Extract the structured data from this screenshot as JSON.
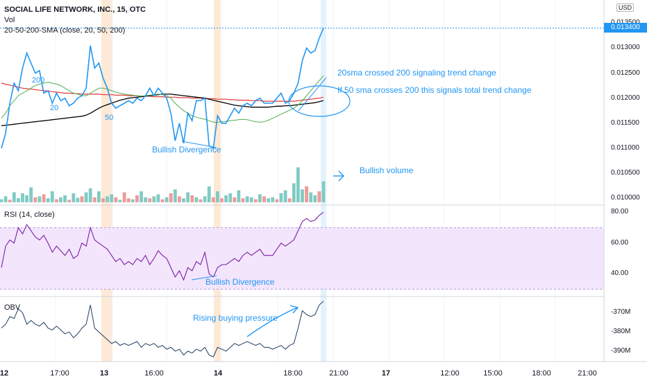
{
  "header": {
    "symbol": "SOCIAL LIFE NETWORK, INC., 15, OTC",
    "vol_label": "Vol",
    "sma_label": "20-50-200-SMA (close, 20, 50, 200)",
    "currency": "USD",
    "last_price": "0.013400"
  },
  "colors": {
    "price": "#2196f3",
    "sma20": "#4caf50",
    "sma50": "#000000",
    "sma200": "#e53935",
    "rsi": "#7b1fa2",
    "rsi_band": "#f3e5fc",
    "obv": "#1e3a5f",
    "vol_up": "#80cbc4",
    "vol_down": "#ef9a9a",
    "session_highlight": "#fde9d6"
  },
  "annotations": {
    "sma200_tag": "200",
    "sma20_tag": "20",
    "sma50_tag": "50",
    "bullish_divergence_price": "Bullish Divergence",
    "sma_cross_note": "20sma crossed 200 signaling trend change",
    "sma50_note": "If 50 sma crosses 200 this signals total trend change",
    "bullish_volume": "Bullish volume",
    "bullish_divergence_rsi": "Bullish Divergence",
    "rising_pressure": "Rising buying pressure"
  },
  "rsi_label": "RSI (14, close)",
  "obv_label": "OBV",
  "price_axis": [
    "0.013500",
    "0.013000",
    "0.012500",
    "0.012000",
    "0.011500",
    "0.011000",
    "0.010500",
    "0.010000"
  ],
  "rsi_axis": [
    "80.00",
    "60.00",
    "40.00"
  ],
  "obv_axis": [
    "-370M",
    "-380M",
    "-390M"
  ],
  "time_axis": [
    {
      "label": "12",
      "bold": true
    },
    {
      "label": "17:00",
      "bold": false
    },
    {
      "label": "13",
      "bold": true
    },
    {
      "label": "16:00",
      "bold": false
    },
    {
      "label": "14",
      "bold": true
    },
    {
      "label": "18:00",
      "bold": false
    },
    {
      "label": "21:00",
      "bold": false
    },
    {
      "label": "17",
      "bold": true
    },
    {
      "label": "12:00",
      "bold": false
    },
    {
      "label": "15:00",
      "bold": false
    },
    {
      "label": "18:00",
      "bold": false
    },
    {
      "label": "21:00",
      "bold": false
    }
  ],
  "chart_data": {
    "type": "line",
    "price_ylim": [
      0.00995,
      0.0136
    ],
    "price": [
      0.011,
      0.0113,
      0.0119,
      0.0123,
      0.01215,
      0.0126,
      0.0129,
      0.0127,
      0.0125,
      0.01255,
      0.0121,
      0.01215,
      0.0119,
      0.0121,
      0.01195,
      0.012,
      0.01185,
      0.0119,
      0.012,
      0.01205,
      0.0122,
      0.01305,
      0.0126,
      0.0127,
      0.0124,
      0.0122,
      0.0119,
      0.0118,
      0.01185,
      0.0119,
      0.01195,
      0.0119,
      0.012,
      0.01195,
      0.01205,
      0.0122,
      0.01205,
      0.0122,
      0.0121,
      0.012,
      0.0117,
      0.01115,
      0.0115,
      0.0111,
      0.0117,
      0.01155,
      0.01195,
      0.01195,
      0.012,
      0.01105,
      0.011,
      0.01165,
      0.0115,
      0.0115,
      0.01165,
      0.0118,
      0.0117,
      0.01185,
      0.0119,
      0.01185,
      0.01195,
      0.012,
      0.0119,
      0.0119,
      0.0119,
      0.012,
      0.0121,
      0.0119,
      0.01195,
      0.0121,
      0.0123,
      0.01275,
      0.013,
      0.0129,
      0.01295,
      0.0132,
      0.0134
    ],
    "sma20": [
      0.0116,
      0.0117,
      0.01185,
      0.01195,
      0.01205,
      0.0121,
      0.01215,
      0.0122,
      0.01225,
      0.01228,
      0.0123,
      0.01232,
      0.0123,
      0.01228,
      0.01225,
      0.0122,
      0.01215,
      0.0121,
      0.01208,
      0.01205,
      0.01205,
      0.0121,
      0.01215,
      0.0122,
      0.0122,
      0.01218,
      0.01215,
      0.01212,
      0.0121,
      0.01208,
      0.01207,
      0.01206,
      0.01205,
      0.01204,
      0.01205,
      0.01206,
      0.01207,
      0.01208,
      0.01207,
      0.01205,
      0.012,
      0.0119,
      0.01182,
      0.01175,
      0.0117,
      0.01165,
      0.01162,
      0.0116,
      0.01158,
      0.01155,
      0.01152,
      0.01152,
      0.01153,
      0.01154,
      0.01155,
      0.01156,
      0.01157,
      0.01158,
      0.01157,
      0.01155,
      0.01153,
      0.01152,
      0.01153,
      0.01156,
      0.0116,
      0.01164,
      0.01168,
      0.01172,
      0.01176,
      0.0118,
      0.01186,
      0.01195,
      0.01205,
      0.01215,
      0.01225,
      0.01235,
      0.01245
    ],
    "sma50": [
      0.01145,
      0.01146,
      0.01147,
      0.01148,
      0.01149,
      0.0115,
      0.01151,
      0.01152,
      0.01153,
      0.01154,
      0.01155,
      0.01156,
      0.01157,
      0.01158,
      0.01159,
      0.0116,
      0.01161,
      0.01162,
      0.01163,
      0.01164,
      0.01166,
      0.0117,
      0.01175,
      0.0118,
      0.01184,
      0.01187,
      0.0119,
      0.01193,
      0.01196,
      0.01198,
      0.012,
      0.01201,
      0.01202,
      0.01203,
      0.01204,
      0.01205,
      0.01206,
      0.01207,
      0.01208,
      0.01208,
      0.01208,
      0.01207,
      0.01206,
      0.01205,
      0.01204,
      0.01203,
      0.01202,
      0.01201,
      0.012,
      0.01198,
      0.01196,
      0.01194,
      0.01192,
      0.0119,
      0.01188,
      0.01186,
      0.01185,
      0.01184,
      0.01183,
      0.01182,
      0.01182,
      0.01182,
      0.01182,
      0.01182,
      0.01183,
      0.01184,
      0.01184,
      0.01185,
      0.01185,
      0.01186,
      0.01187,
      0.01188,
      0.01189,
      0.0119,
      0.01191,
      0.01193,
      0.01195
    ],
    "sma200": [
      0.0123,
      0.01228,
      0.01226,
      0.01224,
      0.01222,
      0.0122,
      0.01219,
      0.01218,
      0.01217,
      0.01216,
      0.01215,
      0.01214,
      0.01213,
      0.01212,
      0.01211,
      0.0121,
      0.0121,
      0.01209,
      0.01209,
      0.01208,
      0.01208,
      0.01208,
      0.01208,
      0.01208,
      0.01207,
      0.01207,
      0.01207,
      0.01206,
      0.01206,
      0.01206,
      0.01205,
      0.01205,
      0.01205,
      0.01204,
      0.01204,
      0.01204,
      0.01203,
      0.01203,
      0.01203,
      0.01202,
      0.01202,
      0.01202,
      0.01201,
      0.01201,
      0.01201,
      0.012,
      0.012,
      0.012,
      0.01199,
      0.01199,
      0.01199,
      0.01198,
      0.01198,
      0.01198,
      0.01197,
      0.01197,
      0.01196,
      0.01196,
      0.01196,
      0.01195,
      0.01195,
      0.01195,
      0.01194,
      0.01194,
      0.01194,
      0.01194,
      0.01194,
      0.01194,
      0.01194,
      0.01194,
      0.01195,
      0.01196,
      0.01197,
      0.01198,
      0.01199,
      0.012,
      0.01202
    ],
    "volume": [
      0.06,
      0.12,
      0.05,
      0.2,
      0.08,
      0.18,
      0.14,
      0.3,
      0.1,
      0.12,
      0.16,
      0.08,
      0.22,
      0.06,
      0.1,
      0.14,
      0.05,
      0.18,
      0.09,
      0.12,
      0.2,
      0.28,
      0.1,
      0.22,
      0.08,
      0.12,
      0.16,
      0.1,
      0.05,
      0.2,
      0.08,
      0.06,
      0.14,
      0.22,
      0.1,
      0.08,
      0.12,
      0.16,
      0.06,
      0.1,
      0.18,
      0.26,
      0.12,
      0.08,
      0.2,
      0.14,
      0.1,
      0.06,
      0.12,
      0.32,
      0.1,
      0.22,
      0.08,
      0.14,
      0.18,
      0.1,
      0.24,
      0.08,
      0.12,
      0.1,
      0.06,
      0.16,
      0.12,
      0.08,
      0.1,
      0.06,
      0.18,
      0.24,
      0.08,
      0.38,
      0.7,
      0.26,
      0.32,
      0.2,
      0.14,
      0.22,
      0.42
    ],
    "volume_up": [
      1,
      1,
      0,
      1,
      1,
      1,
      1,
      1,
      0,
      1,
      0,
      1,
      1,
      0,
      1,
      1,
      0,
      1,
      1,
      0,
      1,
      1,
      0,
      1,
      0,
      1,
      1,
      0,
      1,
      0,
      0,
      1,
      0,
      1,
      1,
      0,
      1,
      1,
      0,
      1,
      0,
      1,
      0,
      1,
      1,
      0,
      1,
      0,
      1,
      1,
      0,
      1,
      0,
      1,
      1,
      0,
      1,
      0,
      1,
      1,
      0,
      1,
      0,
      1,
      1,
      0,
      1,
      1,
      0,
      1,
      1,
      1,
      0,
      1,
      1,
      0,
      1
    ],
    "volume_ylim": [
      0,
      1
    ],
    "rsi_ylim": [
      28,
      82
    ],
    "rsi_band": [
      30,
      70
    ],
    "rsi": [
      44,
      58,
      62,
      60,
      70,
      66,
      72,
      68,
      64,
      62,
      65,
      60,
      54,
      58,
      55,
      52,
      56,
      50,
      52,
      60,
      58,
      70,
      62,
      60,
      58,
      56,
      52,
      48,
      50,
      46,
      48,
      46,
      50,
      48,
      52,
      46,
      50,
      55,
      52,
      50,
      44,
      38,
      42,
      36,
      44,
      42,
      48,
      46,
      54,
      40,
      38,
      44,
      46,
      46,
      48,
      50,
      48,
      52,
      54,
      52,
      54,
      56,
      52,
      52,
      52,
      56,
      60,
      58,
      60,
      62,
      68,
      74,
      76,
      74,
      75,
      78,
      80
    ],
    "obv_ylim": [
      -394,
      -363
    ],
    "obv": [
      -378,
      -376,
      -372,
      -373,
      -368,
      -370,
      -376,
      -374,
      -376,
      -377,
      -375,
      -378,
      -379,
      -377,
      -379,
      -381,
      -380,
      -383,
      -381,
      -378,
      -376,
      -366,
      -378,
      -380,
      -382,
      -384,
      -386,
      -385,
      -387,
      -386,
      -387,
      -386,
      -385,
      -388,
      -386,
      -387,
      -386,
      -388,
      -387,
      -389,
      -388,
      -390,
      -389,
      -392,
      -390,
      -391,
      -389,
      -390,
      -388,
      -392,
      -393,
      -388,
      -389,
      -390,
      -388,
      -386,
      -387,
      -386,
      -385,
      -386,
      -387,
      -386,
      -388,
      -388,
      -389,
      -388,
      -387,
      -389,
      -387,
      -386,
      -378,
      -369,
      -371,
      -372,
      -371,
      -366,
      -364
    ]
  }
}
